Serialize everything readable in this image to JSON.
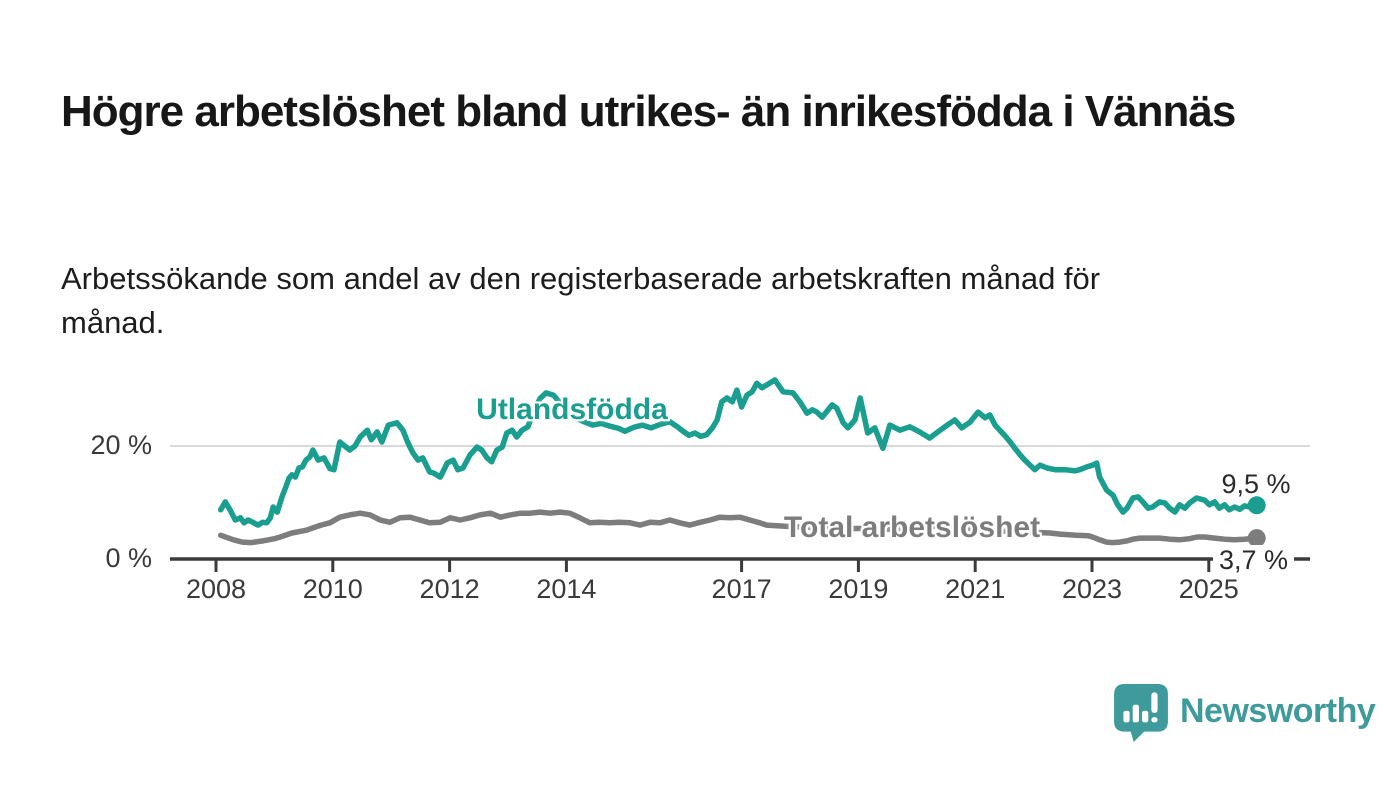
{
  "header": {
    "title": "Högre arbetslöshet bland utrikes- än inrikesfödda i Vännäs",
    "subtitle": "Arbetssökande som andel av den registerbaserade arbetskraften månad för månad."
  },
  "branding": {
    "logo_text": "Newsworthy",
    "logo_color": "#3f9b9b",
    "logo_icon": "speech-bubble-bar-chart-icon"
  },
  "chart_data": {
    "type": "line",
    "title": "Högre arbetslöshet bland utrikes- än inrikesfödda i Vännäs",
    "xlabel": "",
    "ylabel": "Arbetssökande som andel av den registerbaserade arbetskraften (%)",
    "x_unit": "year (monthly data)",
    "y_unit": "%",
    "x_range": [
      2007.2,
      2026.7
    ],
    "y_range": [
      0,
      33
    ],
    "grid": "horizontal-only",
    "gridline_color": "#d9d9d9",
    "axis_color": "#3b3b3b",
    "x_ticks": [
      {
        "value": 2008,
        "label": "2008"
      },
      {
        "value": 2010,
        "label": "2010"
      },
      {
        "value": 2012,
        "label": "2012"
      },
      {
        "value": 2014,
        "label": "2014"
      },
      {
        "value": 2017,
        "label": "2017"
      },
      {
        "value": 2019,
        "label": "2019"
      },
      {
        "value": 2021,
        "label": "2021"
      },
      {
        "value": 2023,
        "label": "2023"
      },
      {
        "value": 2025,
        "label": "2025"
      }
    ],
    "y_ticks": [
      {
        "value": 0,
        "label": "0 %"
      },
      {
        "value": 20,
        "label": "20 %"
      }
    ],
    "series": [
      {
        "name": "Utlandsfödda",
        "label": "Utlandsfödda",
        "end_label": "9,5 %",
        "end_value": 9.5,
        "color": "#1a9e8f",
        "points": [
          [
            2008.08,
            8.7
          ],
          [
            2008.16,
            10.1
          ],
          [
            2008.24,
            8.7
          ],
          [
            2008.33,
            6.9
          ],
          [
            2008.42,
            7.3
          ],
          [
            2008.48,
            6.4
          ],
          [
            2008.55,
            6.9
          ],
          [
            2008.63,
            6.5
          ],
          [
            2008.72,
            6.0
          ],
          [
            2008.8,
            6.5
          ],
          [
            2008.87,
            6.4
          ],
          [
            2008.93,
            7.3
          ],
          [
            2008.98,
            9.2
          ],
          [
            2009.05,
            8.3
          ],
          [
            2009.13,
            11.0
          ],
          [
            2009.19,
            12.6
          ],
          [
            2009.25,
            14.3
          ],
          [
            2009.3,
            14.9
          ],
          [
            2009.36,
            14.5
          ],
          [
            2009.42,
            16.1
          ],
          [
            2009.48,
            16.3
          ],
          [
            2009.54,
            17.5
          ],
          [
            2009.61,
            18.1
          ],
          [
            2009.66,
            19.3
          ],
          [
            2009.75,
            17.5
          ],
          [
            2009.85,
            17.9
          ],
          [
            2009.95,
            16.0
          ],
          [
            2010.02,
            15.8
          ],
          [
            2010.12,
            20.7
          ],
          [
            2010.18,
            20.2
          ],
          [
            2010.29,
            19.3
          ],
          [
            2010.38,
            20.0
          ],
          [
            2010.47,
            21.6
          ],
          [
            2010.59,
            22.8
          ],
          [
            2010.66,
            21.1
          ],
          [
            2010.76,
            22.5
          ],
          [
            2010.84,
            20.7
          ],
          [
            2010.95,
            23.7
          ],
          [
            2011.1,
            24.1
          ],
          [
            2011.2,
            22.8
          ],
          [
            2011.28,
            20.7
          ],
          [
            2011.37,
            18.8
          ],
          [
            2011.46,
            17.5
          ],
          [
            2011.54,
            17.9
          ],
          [
            2011.66,
            15.4
          ],
          [
            2011.73,
            15.2
          ],
          [
            2011.84,
            14.5
          ],
          [
            2011.96,
            17.0
          ],
          [
            2012.06,
            17.5
          ],
          [
            2012.14,
            15.8
          ],
          [
            2012.23,
            16.1
          ],
          [
            2012.35,
            18.4
          ],
          [
            2012.47,
            19.8
          ],
          [
            2012.55,
            19.3
          ],
          [
            2012.64,
            17.9
          ],
          [
            2012.72,
            17.2
          ],
          [
            2012.81,
            19.3
          ],
          [
            2012.9,
            19.8
          ],
          [
            2012.98,
            22.3
          ],
          [
            2013.07,
            22.8
          ],
          [
            2013.15,
            21.6
          ],
          [
            2013.24,
            22.8
          ],
          [
            2013.34,
            23.4
          ],
          [
            2013.45,
            26.5
          ],
          [
            2013.55,
            28.4
          ],
          [
            2013.65,
            29.4
          ],
          [
            2013.78,
            29.0
          ],
          [
            2013.9,
            27.5
          ],
          [
            2014.0,
            26.0
          ],
          [
            2014.15,
            25.0
          ],
          [
            2014.3,
            24.3
          ],
          [
            2014.45,
            23.7
          ],
          [
            2014.6,
            24.0
          ],
          [
            2014.75,
            23.5
          ],
          [
            2014.9,
            23.1
          ],
          [
            2015.0,
            22.6
          ],
          [
            2015.15,
            23.3
          ],
          [
            2015.3,
            23.7
          ],
          [
            2015.45,
            23.2
          ],
          [
            2015.6,
            23.8
          ],
          [
            2015.77,
            24.3
          ],
          [
            2015.9,
            23.4
          ],
          [
            2016.0,
            22.6
          ],
          [
            2016.1,
            21.9
          ],
          [
            2016.2,
            22.3
          ],
          [
            2016.3,
            21.7
          ],
          [
            2016.4,
            22.0
          ],
          [
            2016.5,
            23.2
          ],
          [
            2016.58,
            24.6
          ],
          [
            2016.66,
            27.8
          ],
          [
            2016.75,
            28.5
          ],
          [
            2016.84,
            27.8
          ],
          [
            2016.92,
            29.9
          ],
          [
            2017.0,
            26.9
          ],
          [
            2017.09,
            29.0
          ],
          [
            2017.18,
            29.6
          ],
          [
            2017.26,
            31.1
          ],
          [
            2017.35,
            30.3
          ],
          [
            2017.43,
            30.8
          ],
          [
            2017.57,
            31.7
          ],
          [
            2017.71,
            29.6
          ],
          [
            2017.88,
            29.4
          ],
          [
            2018.0,
            27.8
          ],
          [
            2018.12,
            25.8
          ],
          [
            2018.21,
            26.4
          ],
          [
            2018.29,
            26.0
          ],
          [
            2018.38,
            25.1
          ],
          [
            2018.55,
            27.3
          ],
          [
            2018.63,
            26.7
          ],
          [
            2018.74,
            24.1
          ],
          [
            2018.82,
            23.2
          ],
          [
            2018.94,
            24.6
          ],
          [
            2019.03,
            28.5
          ],
          [
            2019.16,
            22.3
          ],
          [
            2019.28,
            23.2
          ],
          [
            2019.42,
            19.6
          ],
          [
            2019.54,
            23.7
          ],
          [
            2019.71,
            22.8
          ],
          [
            2019.88,
            23.4
          ],
          [
            2020.05,
            22.5
          ],
          [
            2020.22,
            21.4
          ],
          [
            2020.4,
            22.8
          ],
          [
            2020.52,
            23.7
          ],
          [
            2020.65,
            24.6
          ],
          [
            2020.77,
            23.2
          ],
          [
            2020.91,
            24.2
          ],
          [
            2021.05,
            26.0
          ],
          [
            2021.17,
            25.0
          ],
          [
            2021.25,
            25.5
          ],
          [
            2021.34,
            23.7
          ],
          [
            2021.42,
            22.8
          ],
          [
            2021.51,
            21.8
          ],
          [
            2021.6,
            20.7
          ],
          [
            2021.68,
            19.6
          ],
          [
            2021.77,
            18.4
          ],
          [
            2021.85,
            17.5
          ],
          [
            2021.94,
            16.6
          ],
          [
            2022.02,
            15.8
          ],
          [
            2022.11,
            16.6
          ],
          [
            2022.23,
            16.1
          ],
          [
            2022.37,
            15.8
          ],
          [
            2022.54,
            15.8
          ],
          [
            2022.71,
            15.6
          ],
          [
            2022.79,
            15.8
          ],
          [
            2022.91,
            16.3
          ],
          [
            2023.01,
            16.6
          ],
          [
            2023.08,
            17.0
          ],
          [
            2023.13,
            14.5
          ],
          [
            2023.25,
            12.2
          ],
          [
            2023.36,
            11.3
          ],
          [
            2023.44,
            9.6
          ],
          [
            2023.53,
            8.3
          ],
          [
            2023.6,
            9.0
          ],
          [
            2023.7,
            10.8
          ],
          [
            2023.79,
            11.0
          ],
          [
            2023.87,
            10.1
          ],
          [
            2023.96,
            9.0
          ],
          [
            2024.04,
            9.2
          ],
          [
            2024.16,
            10.1
          ],
          [
            2024.25,
            9.9
          ],
          [
            2024.33,
            9.0
          ],
          [
            2024.42,
            8.3
          ],
          [
            2024.5,
            9.6
          ],
          [
            2024.59,
            9.0
          ],
          [
            2024.67,
            9.9
          ],
          [
            2024.79,
            10.8
          ],
          [
            2024.93,
            10.4
          ],
          [
            2025.01,
            9.6
          ],
          [
            2025.1,
            10.1
          ],
          [
            2025.18,
            9.0
          ],
          [
            2025.27,
            9.6
          ],
          [
            2025.35,
            8.7
          ],
          [
            2025.44,
            9.2
          ],
          [
            2025.53,
            8.8
          ],
          [
            2025.61,
            9.4
          ],
          [
            2025.71,
            9.2
          ],
          [
            2025.82,
            9.5
          ]
        ]
      },
      {
        "name": "Total arbetslöshet",
        "label": "Total arbetslöshet",
        "end_label": "3,7 %",
        "end_value": 3.7,
        "color": "#7d7d7d",
        "points": [
          [
            2008.08,
            4.2
          ],
          [
            2008.3,
            3.4
          ],
          [
            2008.45,
            3.0
          ],
          [
            2008.6,
            2.9
          ],
          [
            2008.8,
            3.2
          ],
          [
            2009.0,
            3.6
          ],
          [
            2009.1,
            3.9
          ],
          [
            2009.3,
            4.6
          ],
          [
            2009.55,
            5.1
          ],
          [
            2009.66,
            5.5
          ],
          [
            2009.8,
            6.0
          ],
          [
            2009.95,
            6.4
          ],
          [
            2010.12,
            7.4
          ],
          [
            2010.29,
            7.8
          ],
          [
            2010.47,
            8.1
          ],
          [
            2010.64,
            7.8
          ],
          [
            2010.81,
            6.9
          ],
          [
            2010.98,
            6.5
          ],
          [
            2011.15,
            7.3
          ],
          [
            2011.32,
            7.4
          ],
          [
            2011.49,
            6.9
          ],
          [
            2011.66,
            6.4
          ],
          [
            2011.84,
            6.5
          ],
          [
            2012.01,
            7.3
          ],
          [
            2012.18,
            6.9
          ],
          [
            2012.35,
            7.3
          ],
          [
            2012.52,
            7.8
          ],
          [
            2012.7,
            8.1
          ],
          [
            2012.87,
            7.4
          ],
          [
            2013.04,
            7.8
          ],
          [
            2013.21,
            8.1
          ],
          [
            2013.38,
            8.1
          ],
          [
            2013.55,
            8.3
          ],
          [
            2013.72,
            8.1
          ],
          [
            2013.89,
            8.3
          ],
          [
            2014.06,
            8.1
          ],
          [
            2014.23,
            7.3
          ],
          [
            2014.4,
            6.4
          ],
          [
            2014.57,
            6.5
          ],
          [
            2014.74,
            6.4
          ],
          [
            2014.91,
            6.5
          ],
          [
            2015.09,
            6.4
          ],
          [
            2015.26,
            6.0
          ],
          [
            2015.43,
            6.5
          ],
          [
            2015.6,
            6.4
          ],
          [
            2015.77,
            6.9
          ],
          [
            2015.94,
            6.4
          ],
          [
            2016.11,
            6.0
          ],
          [
            2016.29,
            6.5
          ],
          [
            2016.46,
            6.9
          ],
          [
            2016.63,
            7.4
          ],
          [
            2016.8,
            7.3
          ],
          [
            2016.97,
            7.4
          ],
          [
            2017.14,
            6.9
          ],
          [
            2017.31,
            6.4
          ],
          [
            2017.43,
            6.0
          ],
          [
            2017.6,
            5.9
          ],
          [
            2017.9,
            5.7
          ],
          [
            2018.2,
            5.6
          ],
          [
            2018.5,
            5.5
          ],
          [
            2018.8,
            5.4
          ],
          [
            2019.1,
            5.4
          ],
          [
            2019.4,
            5.3
          ],
          [
            2019.7,
            5.3
          ],
          [
            2020.0,
            5.4
          ],
          [
            2020.3,
            5.8
          ],
          [
            2020.6,
            5.6
          ],
          [
            2020.9,
            5.4
          ],
          [
            2021.2,
            5.1
          ],
          [
            2021.5,
            4.9
          ],
          [
            2021.8,
            4.8
          ],
          [
            2022.0,
            4.7
          ],
          [
            2022.28,
            4.6
          ],
          [
            2022.45,
            4.4
          ],
          [
            2022.73,
            4.2
          ],
          [
            2022.94,
            4.1
          ],
          [
            2023.01,
            3.9
          ],
          [
            2023.13,
            3.4
          ],
          [
            2023.25,
            3.0
          ],
          [
            2023.35,
            2.9
          ],
          [
            2023.47,
            3.0
          ],
          [
            2023.6,
            3.2
          ],
          [
            2023.7,
            3.5
          ],
          [
            2023.82,
            3.7
          ],
          [
            2024.0,
            3.7
          ],
          [
            2024.16,
            3.7
          ],
          [
            2024.33,
            3.5
          ],
          [
            2024.5,
            3.4
          ],
          [
            2024.67,
            3.6
          ],
          [
            2024.8,
            3.9
          ],
          [
            2024.93,
            3.9
          ],
          [
            2025.1,
            3.7
          ],
          [
            2025.27,
            3.5
          ],
          [
            2025.44,
            3.4
          ],
          [
            2025.61,
            3.5
          ],
          [
            2025.82,
            3.7
          ]
        ]
      }
    ]
  }
}
